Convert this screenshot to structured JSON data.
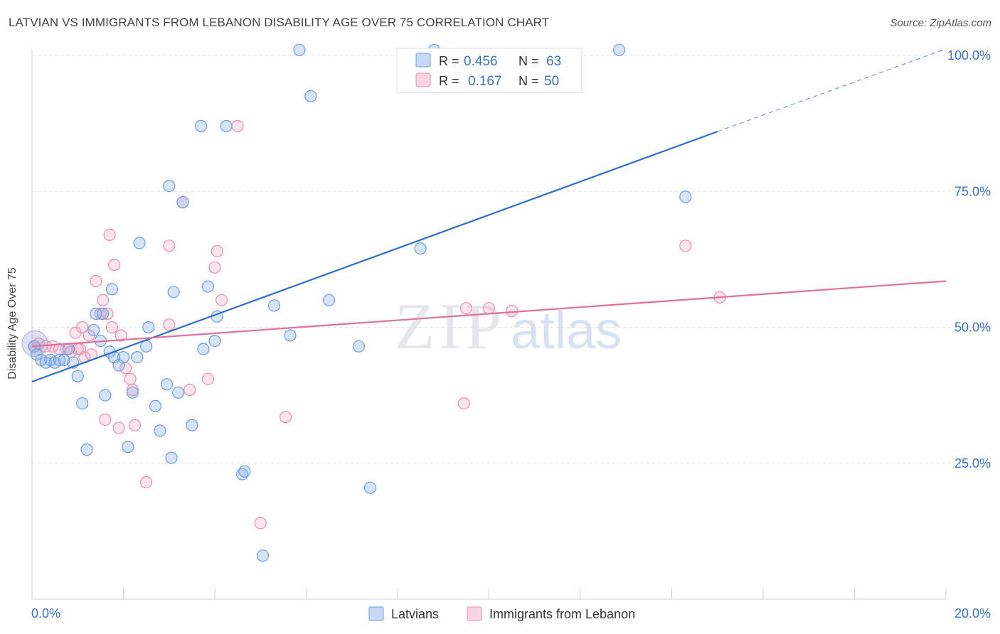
{
  "title": "LATVIAN VS IMMIGRANTS FROM LEBANON DISABILITY AGE OVER 75 CORRELATION CHART",
  "source": "Source: ZipAtlas.com",
  "watermark": {
    "zip": "ZIP",
    "atlas": "atlas"
  },
  "legend_box": {
    "rows": [
      {
        "r_label": "R =",
        "r_value": "0.456",
        "n_label": "N =",
        "n_value": "63"
      },
      {
        "r_label": "R =",
        "r_value": "0.167",
        "n_label": "N =",
        "n_value": "50"
      }
    ]
  },
  "colors": {
    "blue": "#6a9de0",
    "blue_fill": "rgba(130,170,230,0.32)",
    "blue_line": "#2f6fc9",
    "pink": "#e88fae",
    "pink_fill": "rgba(240,160,190,0.28)",
    "pink_line": "#e0709a",
    "axis_text": "#3a72c9",
    "grid": "#dde1e8"
  },
  "chart_data": {
    "type": "scatter",
    "title": "LATVIAN VS IMMIGRANTS FROM LEBANON DISABILITY AGE OVER 75 CORRELATION CHART",
    "xlabel": "",
    "ylabel": "Disability Age Over 75",
    "xlim": [
      0,
      20
    ],
    "ylim": [
      0,
      105
    ],
    "x_tick_labels": [
      "0.0%",
      "20.0%"
    ],
    "y_tick_labels": [
      "25.0%",
      "50.0%",
      "75.0%",
      "100.0%"
    ],
    "y_ticks": [
      25,
      50,
      75,
      100
    ],
    "grid": true,
    "legend_position": "bottom",
    "series": [
      {
        "name": "Latvians",
        "color": "#6a9de0",
        "trend": {
          "x0": 0,
          "y0": 40.0,
          "x1": 15.0,
          "y1": 86.0,
          "dash_to_x": 20,
          "dash_to_y": 101.2
        },
        "points": [
          [
            0.05,
            46.5
          ],
          [
            0.1,
            45.0
          ],
          [
            0.2,
            44.0
          ],
          [
            0.3,
            43.5
          ],
          [
            0.4,
            44.0
          ],
          [
            0.5,
            43.5
          ],
          [
            0.6,
            44.0
          ],
          [
            0.7,
            44.0
          ],
          [
            0.8,
            46.0
          ],
          [
            0.9,
            43.5
          ],
          [
            1.0,
            41.0
          ],
          [
            1.1,
            36.0
          ],
          [
            1.2,
            27.5
          ],
          [
            1.35,
            49.5
          ],
          [
            1.4,
            52.5
          ],
          [
            1.5,
            47.5
          ],
          [
            1.55,
            52.5
          ],
          [
            1.6,
            37.5
          ],
          [
            1.7,
            45.5
          ],
          [
            1.75,
            57.0
          ],
          [
            1.8,
            44.5
          ],
          [
            1.9,
            43.0
          ],
          [
            2.0,
            44.5
          ],
          [
            2.1,
            28.0
          ],
          [
            2.2,
            38.0
          ],
          [
            2.3,
            44.5
          ],
          [
            2.35,
            65.5
          ],
          [
            2.5,
            46.5
          ],
          [
            2.55,
            50.0
          ],
          [
            2.7,
            35.5
          ],
          [
            2.8,
            31.0
          ],
          [
            2.95,
            39.5
          ],
          [
            3.0,
            76.0
          ],
          [
            3.05,
            26.0
          ],
          [
            3.1,
            56.5
          ],
          [
            3.2,
            38.0
          ],
          [
            3.3,
            73.0
          ],
          [
            3.5,
            32.0
          ],
          [
            3.7,
            87.0
          ],
          [
            3.75,
            46.0
          ],
          [
            3.85,
            57.5
          ],
          [
            4.0,
            47.5
          ],
          [
            4.05,
            52.0
          ],
          [
            4.25,
            87.0
          ],
          [
            4.6,
            23.0
          ],
          [
            4.65,
            23.5
          ],
          [
            5.05,
            8.0
          ],
          [
            5.3,
            54.0
          ],
          [
            5.65,
            48.5
          ],
          [
            5.85,
            101.0
          ],
          [
            6.1,
            92.5
          ],
          [
            6.5,
            55.0
          ],
          [
            7.15,
            46.5
          ],
          [
            7.4,
            20.5
          ],
          [
            8.5,
            64.5
          ],
          [
            8.8,
            101.0
          ],
          [
            12.85,
            101.0
          ],
          [
            14.3,
            74.0
          ]
        ]
      },
      {
        "name": "Immigrants from Lebanon",
        "color": "#e88fae",
        "trend": {
          "x0": 0,
          "y0": 46.5,
          "x1": 20,
          "y1": 58.5
        },
        "points": [
          [
            0.05,
            46.5
          ],
          [
            0.15,
            47.0
          ],
          [
            0.3,
            46.5
          ],
          [
            0.45,
            46.5
          ],
          [
            0.6,
            46.0
          ],
          [
            0.75,
            46.0
          ],
          [
            0.85,
            45.5
          ],
          [
            0.95,
            49.0
          ],
          [
            1.0,
            46.0
          ],
          [
            1.05,
            46.0
          ],
          [
            1.1,
            50.0
          ],
          [
            1.15,
            44.5
          ],
          [
            1.25,
            48.5
          ],
          [
            1.3,
            45.0
          ],
          [
            1.4,
            58.5
          ],
          [
            1.5,
            52.5
          ],
          [
            1.55,
            55.0
          ],
          [
            1.6,
            33.0
          ],
          [
            1.65,
            52.5
          ],
          [
            1.7,
            67.0
          ],
          [
            1.75,
            50.0
          ],
          [
            1.8,
            61.5
          ],
          [
            1.9,
            31.5
          ],
          [
            1.95,
            48.5
          ],
          [
            2.05,
            42.5
          ],
          [
            2.15,
            40.5
          ],
          [
            2.2,
            38.5
          ],
          [
            2.25,
            32.0
          ],
          [
            2.5,
            21.5
          ],
          [
            3.0,
            65.0
          ],
          [
            3.0,
            50.5
          ],
          [
            3.3,
            73.0
          ],
          [
            3.45,
            38.5
          ],
          [
            3.85,
            40.5
          ],
          [
            4.0,
            61.0
          ],
          [
            4.05,
            64.0
          ],
          [
            4.15,
            55.0
          ],
          [
            4.5,
            87.0
          ],
          [
            5.0,
            14.0
          ],
          [
            5.55,
            33.5
          ],
          [
            9.45,
            36.0
          ],
          [
            9.5,
            53.5
          ],
          [
            10.0,
            53.5
          ],
          [
            10.5,
            53.0
          ],
          [
            14.3,
            65.0
          ],
          [
            15.05,
            55.5
          ]
        ]
      }
    ]
  },
  "bottom_legend": [
    {
      "label": "Latvians"
    },
    {
      "label": "Immigrants from Lebanon"
    }
  ]
}
